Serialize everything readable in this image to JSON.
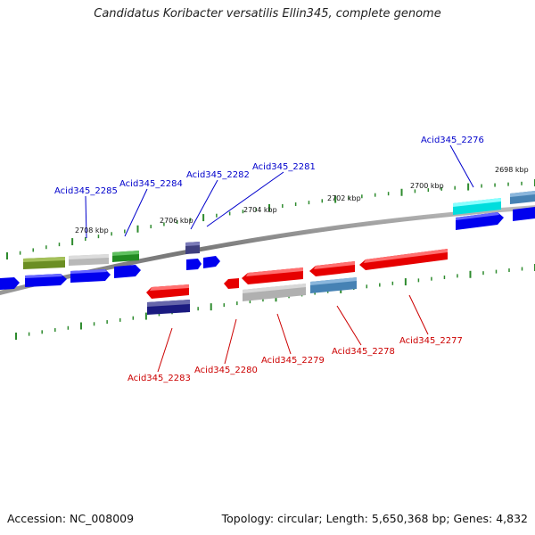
{
  "title": "Candidatus Koribacter versatilis Ellin345, complete genome",
  "footer": {
    "accession": "Accession: NC_008009",
    "topology": "Topology: circular; Length: 5,650,368 bp; Genes: 4,832"
  },
  "colors": {
    "backbone": "#888888",
    "tick": "#2e8b2e",
    "label_forward": "#0000cc",
    "label_reverse": "#cc0000"
  },
  "kbp_labels": [
    "2708 kbp",
    "2706 kbp",
    "2704 kbp",
    "2702 kbp",
    "2700 kbp",
    "2698 kbp"
  ],
  "forward_genes": [
    "Acid345_2285",
    "Acid345_2284",
    "Acid345_2282",
    "Acid345_2281",
    "Acid345_2276"
  ],
  "reverse_genes": [
    "Acid345_2283",
    "Acid345_2280",
    "Acid345_2279",
    "Acid345_2278",
    "Acid345_2277"
  ]
}
